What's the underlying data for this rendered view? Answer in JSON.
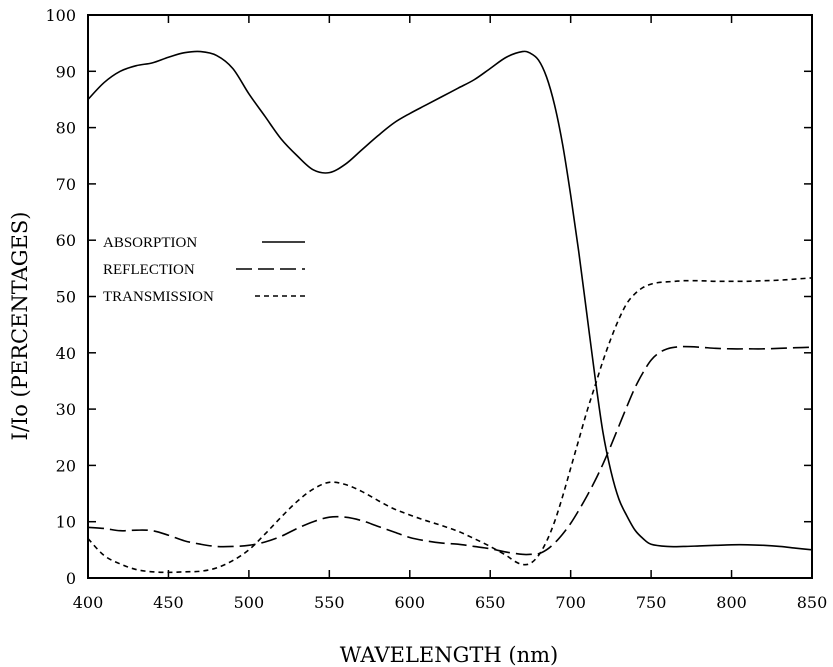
{
  "chart_data": {
    "type": "line",
    "title": "",
    "xlabel": "WAVELENGTH (nm)",
    "ylabel": "I/Io (PERCENTAGES)",
    "xlim": [
      400,
      850
    ],
    "ylim": [
      0,
      100
    ],
    "xticks": [
      400,
      450,
      500,
      550,
      600,
      650,
      700,
      750,
      800,
      850
    ],
    "yticks": [
      0,
      10,
      20,
      30,
      40,
      50,
      60,
      70,
      80,
      90,
      100
    ],
    "grid": false,
    "legend_position": "left-middle",
    "series": [
      {
        "name": "ABSORPTION",
        "line_style": "solid",
        "color": "#000000",
        "x": [
          400,
          410,
          420,
          430,
          440,
          450,
          460,
          470,
          480,
          490,
          500,
          510,
          520,
          530,
          540,
          550,
          560,
          570,
          580,
          590,
          600,
          610,
          620,
          630,
          640,
          650,
          660,
          670,
          675,
          680,
          685,
          690,
          695,
          700,
          705,
          710,
          715,
          720,
          725,
          730,
          735,
          740,
          745,
          750,
          760,
          770,
          780,
          790,
          800,
          810,
          820,
          830,
          840,
          850
        ],
        "y": [
          85,
          88,
          90,
          91,
          91.5,
          92.5,
          93.3,
          93.5,
          92.8,
          90.5,
          86,
          82,
          78,
          75,
          72.5,
          72,
          73.5,
          76,
          78.5,
          80.8,
          82.5,
          84,
          85.5,
          87,
          88.5,
          90.5,
          92.5,
          93.5,
          93.2,
          92,
          89,
          84,
          77,
          68,
          58,
          47,
          36,
          26,
          19,
          14,
          11,
          8.5,
          7,
          6,
          5.6,
          5.6,
          5.7,
          5.8,
          5.9,
          5.9,
          5.8,
          5.6,
          5.3,
          5
        ]
      },
      {
        "name": "REFLECTION",
        "line_style": "dashed",
        "color": "#000000",
        "x": [
          400,
          410,
          420,
          430,
          440,
          450,
          460,
          470,
          480,
          490,
          500,
          510,
          520,
          530,
          540,
          550,
          560,
          570,
          580,
          590,
          600,
          610,
          620,
          630,
          640,
          650,
          660,
          670,
          675,
          680,
          685,
          690,
          695,
          700,
          705,
          710,
          715,
          720,
          725,
          730,
          735,
          740,
          745,
          750,
          755,
          760,
          765,
          770,
          780,
          790,
          800,
          810,
          820,
          830,
          840,
          850
        ],
        "y": [
          9,
          8.8,
          8.4,
          8.5,
          8.4,
          7.6,
          6.6,
          6,
          5.6,
          5.6,
          5.8,
          6.4,
          7.4,
          8.8,
          10,
          10.8,
          10.8,
          10.2,
          9.2,
          8.2,
          7.2,
          6.6,
          6.2,
          6,
          5.6,
          5.2,
          4.6,
          4.2,
          4.2,
          4.3,
          5,
          6.2,
          7.8,
          9.7,
          12,
          14.5,
          17.2,
          20.2,
          23.5,
          27,
          30.5,
          33.8,
          36.5,
          38.7,
          40,
          40.7,
          41,
          41.1,
          41,
          40.8,
          40.7,
          40.7,
          40.7,
          40.8,
          40.9,
          41
        ]
      },
      {
        "name": "TRANSMISSION",
        "line_style": "dotted",
        "color": "#000000",
        "x": [
          400,
          410,
          420,
          430,
          440,
          450,
          460,
          470,
          480,
          490,
          500,
          510,
          520,
          530,
          540,
          550,
          560,
          570,
          580,
          590,
          600,
          610,
          620,
          630,
          640,
          650,
          660,
          665,
          670,
          675,
          680,
          685,
          690,
          695,
          700,
          705,
          710,
          715,
          720,
          725,
          730,
          735,
          740,
          745,
          750,
          755,
          760,
          765,
          770,
          780,
          790,
          800,
          810,
          820,
          830,
          840,
          850
        ],
        "y": [
          7,
          4,
          2.5,
          1.5,
          1.1,
          1,
          1.1,
          1.2,
          1.8,
          3.1,
          5,
          7.8,
          10.8,
          13.6,
          15.8,
          17,
          16.6,
          15.4,
          13.8,
          12.3,
          11.2,
          10.2,
          9.3,
          8.3,
          7,
          5.6,
          4,
          3,
          2.4,
          2.6,
          4,
          6.5,
          10,
          14.5,
          19.5,
          24.5,
          29.5,
          34,
          38.5,
          42.5,
          46,
          48.8,
          50.5,
          51.6,
          52.2,
          52.5,
          52.6,
          52.7,
          52.8,
          52.8,
          52.7,
          52.7,
          52.7,
          52.8,
          52.9,
          53.1,
          53.3
        ]
      }
    ]
  }
}
